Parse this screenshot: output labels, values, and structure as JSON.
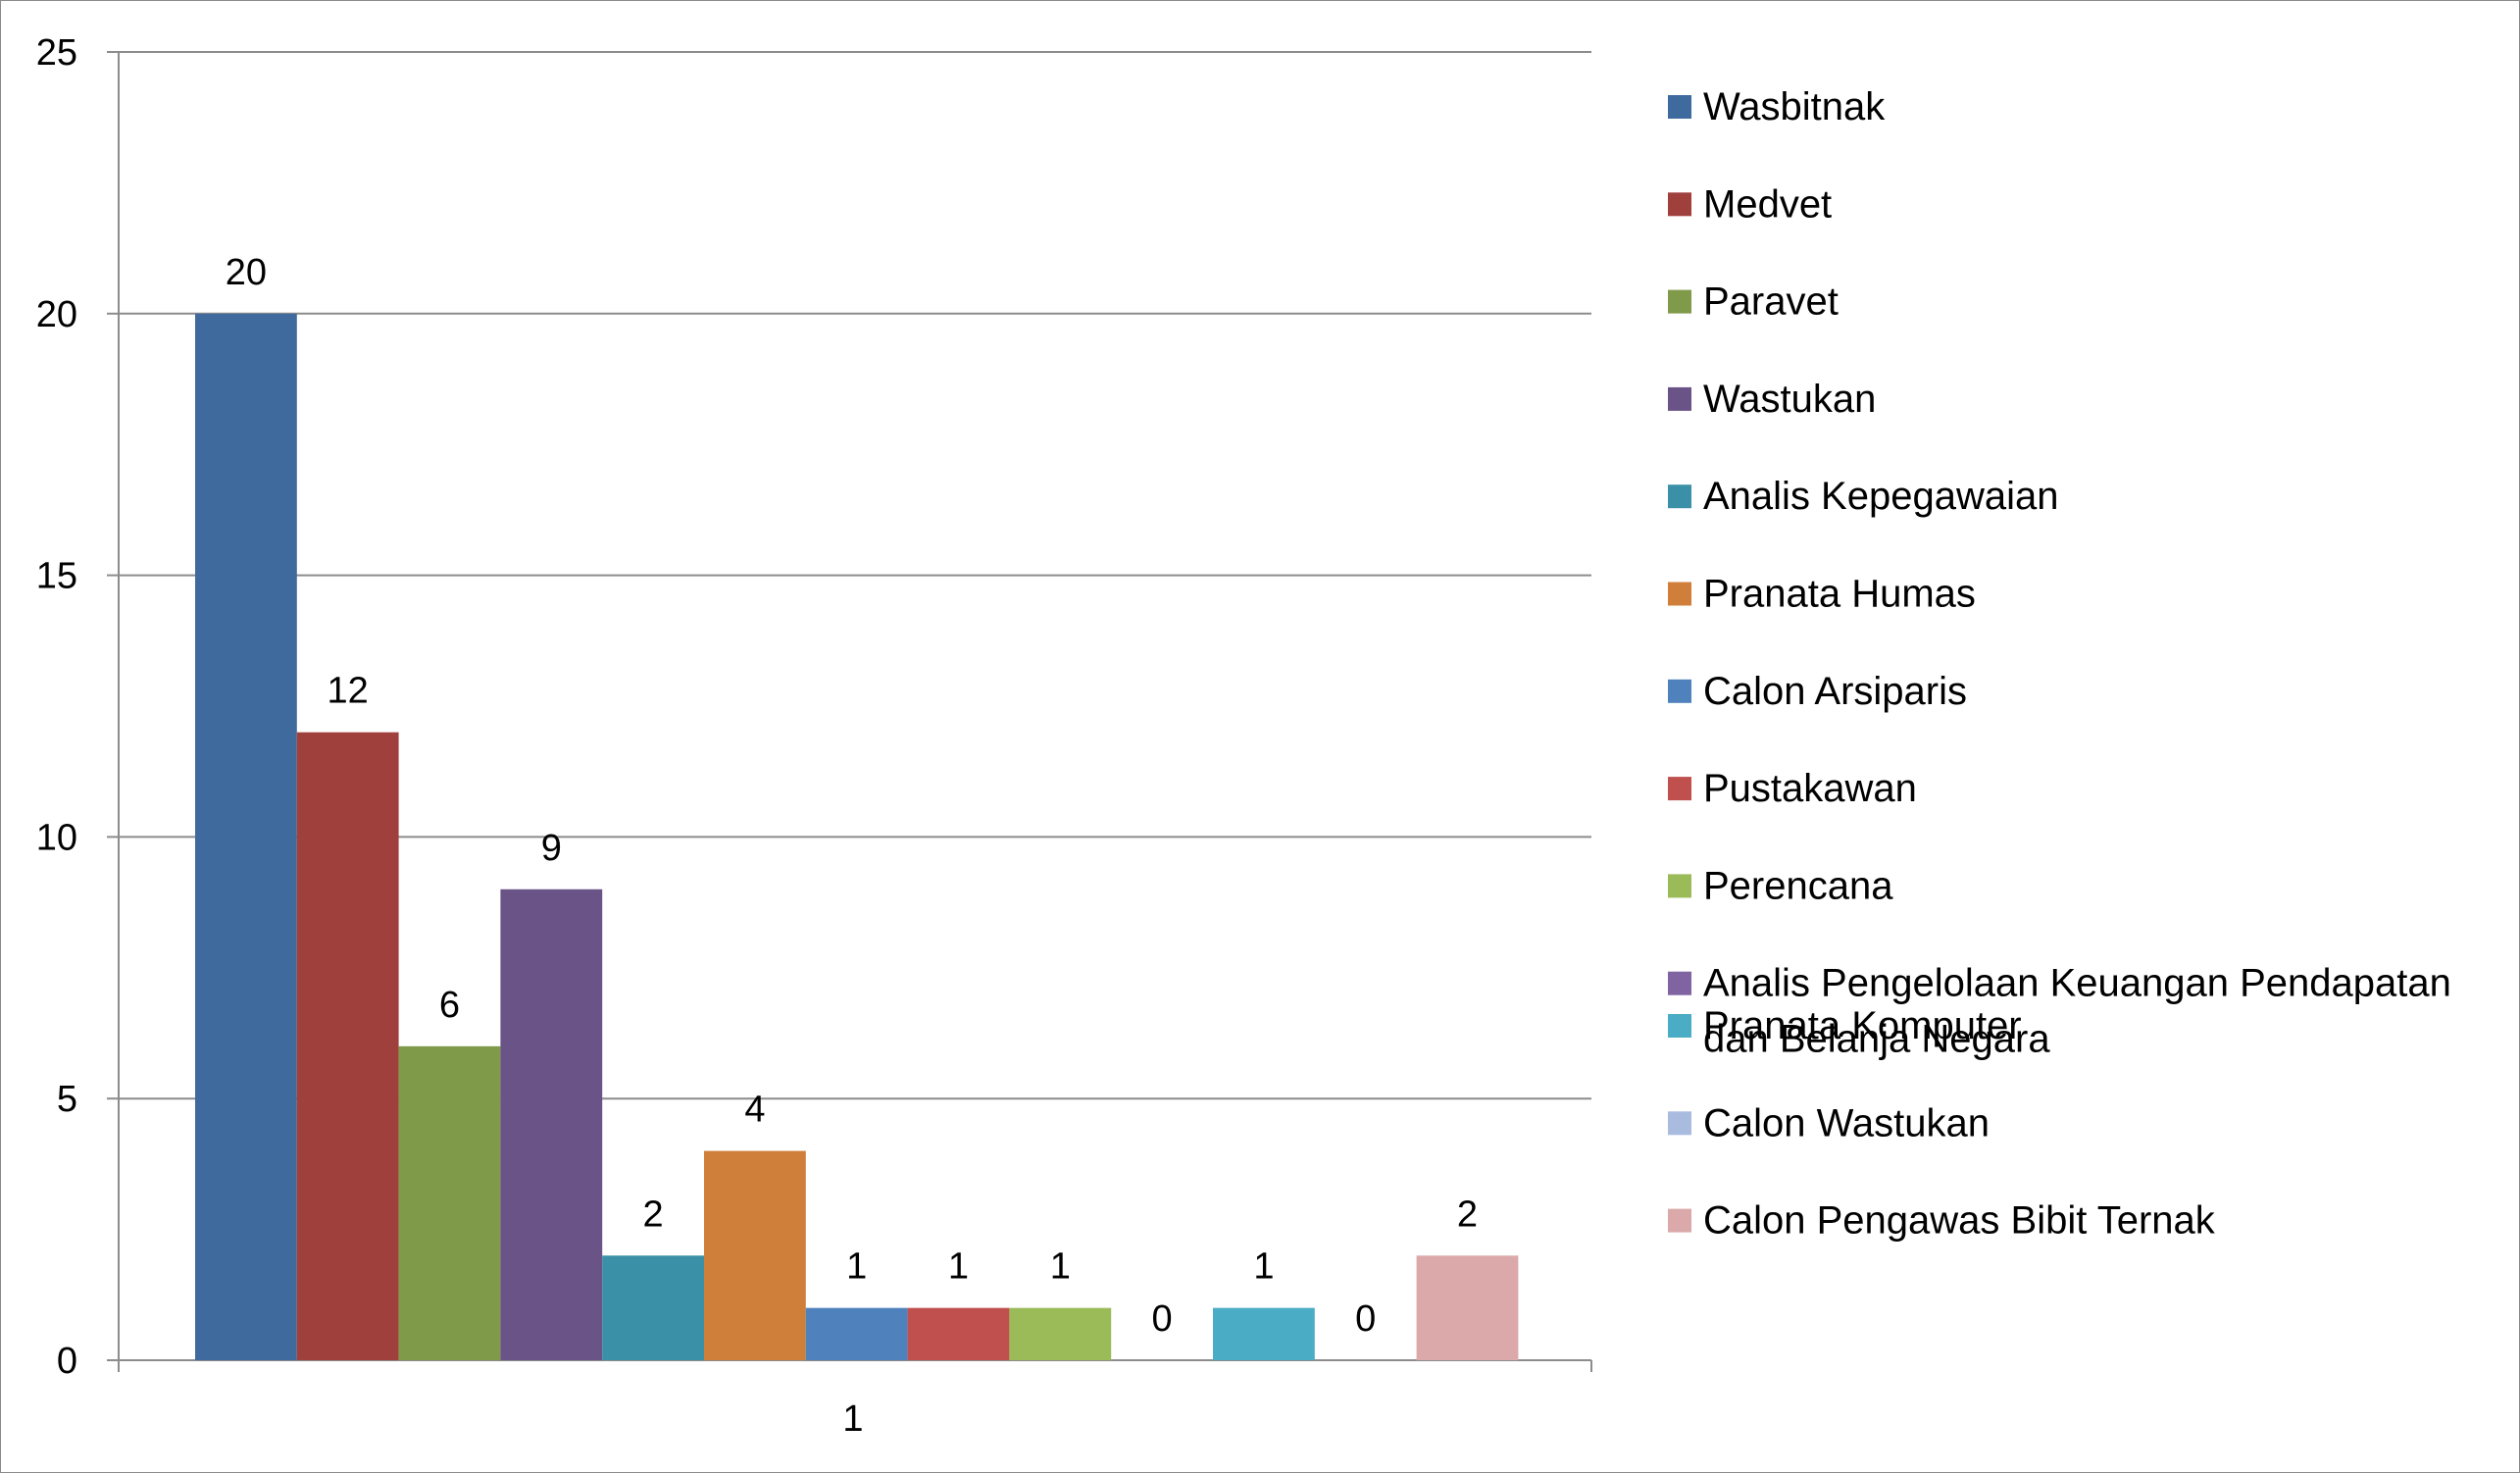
{
  "chart_data": {
    "type": "bar",
    "categories": [
      "1"
    ],
    "series": [
      {
        "name": "Wasbitnak",
        "values": [
          20
        ],
        "color": "#3F6A9E"
      },
      {
        "name": "Medvet",
        "values": [
          12
        ],
        "color": "#A0403D"
      },
      {
        "name": "Paravet",
        "values": [
          6
        ],
        "color": "#7F9A48"
      },
      {
        "name": "Wastukan",
        "values": [
          9
        ],
        "color": "#6A5387"
      },
      {
        "name": "Analis Kepegawaian",
        "values": [
          2
        ],
        "color": "#3A90A6"
      },
      {
        "name": "Pranata Humas",
        "values": [
          4
        ],
        "color": "#D07F3A"
      },
      {
        "name": "Calon Arsiparis",
        "values": [
          1
        ],
        "color": "#4F81BD"
      },
      {
        "name": "Pustakawan",
        "values": [
          1
        ],
        "color": "#C0504D"
      },
      {
        "name": "Perencana",
        "values": [
          1
        ],
        "color": "#9BBB59"
      },
      {
        "name": "Analis Pengelolaan Keuangan Pendapatan dan Belanja Negara",
        "values": [
          0
        ],
        "color": "#8064A2"
      },
      {
        "name": " Pranata Komputer",
        "values": [
          1
        ],
        "color": "#4BACC6"
      },
      {
        "name": "Calon Wastukan",
        "values": [
          0
        ],
        "color": "#A9BCE0"
      },
      {
        "name": "Calon Pengawas Bibit Ternak",
        "values": [
          2
        ],
        "color": "#DBA9AA"
      }
    ],
    "ylim": [
      0,
      25
    ],
    "yticks": [
      "0",
      "5",
      "10",
      "15",
      "20",
      "25"
    ],
    "grid": true,
    "legend_position": "right",
    "title": "",
    "xlabel": "",
    "ylabel": ""
  }
}
